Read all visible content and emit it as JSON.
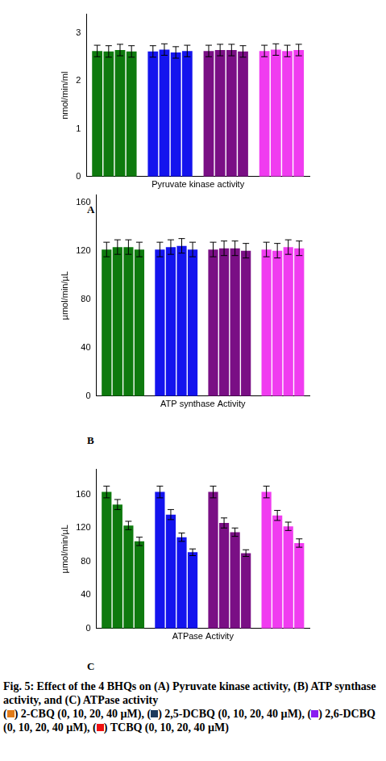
{
  "chart_data": [
    {
      "type": "bar",
      "panel_label": "A",
      "x_label": "Pyruvate kinase activity",
      "y_label": "nmol/min/ml",
      "categories": [
        null,
        null,
        null,
        null
      ],
      "ylim": [
        0,
        3.4
      ],
      "yticks": [
        0,
        1,
        2,
        3
      ],
      "grid": false,
      "tick_labels": "y",
      "series": [
        {
          "values": [
            2.63,
            2.62,
            2.63,
            2.63
          ],
          "errors": [
            0.12,
            0.12,
            0.12,
            0.12
          ],
          "colors": [
            "#0e7a0e",
            "#1414ee",
            "#7a0f85",
            "#f03cf0"
          ]
        },
        {
          "values": [
            2.62,
            2.66,
            2.65,
            2.66
          ],
          "errors": [
            0.12,
            0.12,
            0.12,
            0.12
          ],
          "colors": [
            "#0e7a0e",
            "#1414ee",
            "#7a0f85",
            "#f03cf0"
          ]
        },
        {
          "values": [
            2.65,
            2.6,
            2.65,
            2.63
          ],
          "errors": [
            0.12,
            0.12,
            0.12,
            0.12
          ],
          "colors": [
            "#0e7a0e",
            "#1414ee",
            "#7a0f85",
            "#f03cf0"
          ]
        },
        {
          "values": [
            2.62,
            2.63,
            2.62,
            2.65
          ],
          "errors": [
            0.12,
            0.12,
            0.12,
            0.12
          ],
          "colors": [
            "#0e7a0e",
            "#1414ee",
            "#7a0f85",
            "#f03cf0"
          ]
        }
      ]
    },
    {
      "type": "bar",
      "panel_label": "B",
      "x_label": "ATP synthase Activity",
      "y_label": "µmol/min/µL",
      "categories": [
        null,
        null,
        null,
        null
      ],
      "ylim": [
        0,
        166
      ],
      "yticks": [
        0,
        40,
        80,
        120,
        160
      ],
      "grid": false,
      "tick_labels": "y",
      "series": [
        {
          "values": [
            121,
            121,
            121,
            121
          ],
          "errors": [
            6,
            6,
            6,
            6
          ],
          "colors": [
            "#0e7a0e",
            "#1414ee",
            "#7a0f85",
            "#f03cf0"
          ]
        },
        {
          "values": [
            123,
            123,
            122,
            120
          ],
          "errors": [
            6,
            6,
            6,
            6
          ],
          "colors": [
            "#0e7a0e",
            "#1414ee",
            "#7a0f85",
            "#f03cf0"
          ]
        },
        {
          "values": [
            123,
            124,
            122,
            123
          ],
          "errors": [
            6,
            6,
            6,
            6
          ],
          "colors": [
            "#0e7a0e",
            "#1414ee",
            "#7a0f85",
            "#f03cf0"
          ]
        },
        {
          "values": [
            121,
            121,
            120,
            122
          ],
          "errors": [
            6,
            6,
            6,
            6
          ],
          "colors": [
            "#0e7a0e",
            "#1414ee",
            "#7a0f85",
            "#f03cf0"
          ]
        }
      ]
    },
    {
      "type": "bar",
      "panel_label": "C",
      "x_label": "ATPase Activity",
      "y_label": "µmol/min/µL",
      "categories": [
        null,
        null,
        null,
        null
      ],
      "ylim": [
        0,
        190
      ],
      "yticks": [
        0,
        40,
        80,
        120,
        160
      ],
      "grid": false,
      "tick_labels": "y",
      "series": [
        {
          "values": [
            163,
            163,
            163,
            163
          ],
          "errors": [
            7,
            7,
            7,
            7
          ],
          "colors": [
            "#0e7a0e",
            "#1414ee",
            "#7a0f85",
            "#f03cf0"
          ]
        },
        {
          "values": [
            148,
            136,
            126,
            135
          ],
          "errors": [
            6,
            6,
            6,
            6
          ],
          "colors": [
            "#0e7a0e",
            "#1414ee",
            "#7a0f85",
            "#f03cf0"
          ]
        },
        {
          "values": [
            123,
            109,
            115,
            122
          ],
          "errors": [
            5,
            5,
            5,
            5
          ],
          "colors": [
            "#0e7a0e",
            "#1414ee",
            "#7a0f85",
            "#f03cf0"
          ]
        },
        {
          "values": [
            104,
            91,
            90,
            102
          ],
          "errors": [
            5,
            4,
            4,
            5
          ],
          "colors": [
            "#0e7a0e",
            "#1414ee",
            "#7a0f85",
            "#f03cf0"
          ]
        }
      ]
    }
  ],
  "caption": {
    "title": "Fig. 5: Effect of the 4 BHQs on (A) Pyruvate kinase activity, (B) ATP synthase activity, and (C) ATPase activity",
    "legend": [
      {
        "prefix": "(",
        "color": "#e07b1a",
        "text": ") 2-CBQ (0, 10, 20, 40 µM),"
      },
      {
        "prefix": "(",
        "color": "#1f3b5c",
        "text": ") 2,5-DCBQ (0, 10, 20, 40 µM),"
      },
      {
        "prefix": "(",
        "color": "#8a1ef0",
        "text": ") 2,6-DCBQ (0, 10, 20, 40 µM),"
      },
      {
        "prefix": "(",
        "color": "#ee1111",
        "text": ") TCBQ (0, 10, 20, 40 µM)"
      }
    ]
  }
}
